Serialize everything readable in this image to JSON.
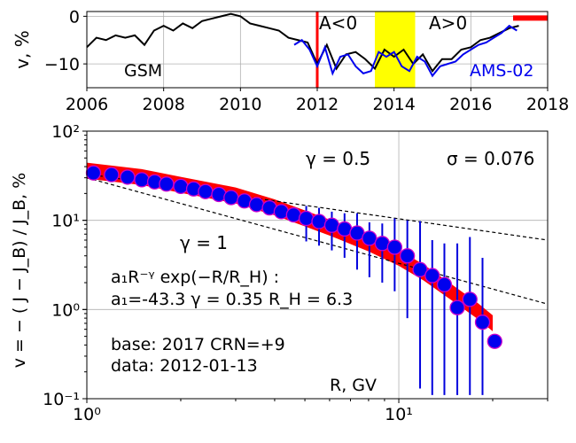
{
  "chart_data": [
    {
      "type": "line",
      "ylabel": "v, %",
      "xlim": [
        2006,
        2018
      ],
      "ylim": [
        -15,
        1
      ],
      "x_ticks": [
        "2006",
        "2008",
        "2010",
        "2012",
        "2014",
        "2016",
        "2018"
      ],
      "y_ticks": [
        "0",
        "−10"
      ],
      "grid": true,
      "annotations": {
        "left_phase": "A<0",
        "right_phase": "A>0",
        "series_black": "GSM",
        "series_blue": "AMS-02"
      },
      "reversal_start": 2012.0,
      "reversal_band": [
        2013.5,
        2014.55
      ],
      "marker_bar": [
        2017.1,
        2018.0
      ],
      "marker_bar_y": 0.0,
      "colors": {
        "gsm": "#000000",
        "ams": "#0000ee",
        "reversal_line": "#ff0000",
        "band": "#ffff00",
        "bar": "#ff0000"
      },
      "series": [
        {
          "name": "GSM",
          "x": [
            2006.0,
            2006.25,
            2006.5,
            2006.75,
            2007.0,
            2007.25,
            2007.5,
            2007.75,
            2008.0,
            2008.25,
            2008.5,
            2008.75,
            2009.0,
            2009.25,
            2009.5,
            2009.75,
            2010.0,
            2010.25,
            2010.5,
            2010.75,
            2011.0,
            2011.25,
            2011.5,
            2011.75,
            2012.0,
            2012.25,
            2012.5,
            2012.75,
            2013.0,
            2013.25,
            2013.5,
            2013.75,
            2014.0,
            2014.25,
            2014.5,
            2014.75,
            2015.0,
            2015.25,
            2015.5,
            2015.75,
            2016.0,
            2016.25,
            2016.5,
            2016.75,
            2017.0,
            2017.25
          ],
          "y": [
            -6.5,
            -4.5,
            -5.0,
            -4.0,
            -4.5,
            -4.0,
            -6.0,
            -3.0,
            -2.0,
            -3.0,
            -1.5,
            -2.5,
            -1.0,
            -0.5,
            0.0,
            0.5,
            0.0,
            -1.5,
            -2.0,
            -2.5,
            -3.0,
            -4.5,
            -5.0,
            -5.5,
            -10.0,
            -6.0,
            -11.0,
            -8.0,
            -7.5,
            -9.0,
            -11.0,
            -7.0,
            -8.5,
            -7.0,
            -10.0,
            -8.0,
            -11.5,
            -9.0,
            -9.0,
            -7.0,
            -6.5,
            -5.0,
            -4.5,
            -3.5,
            -2.5,
            -2.0
          ]
        },
        {
          "name": "AMS-02",
          "x": [
            2011.4,
            2011.6,
            2011.8,
            2012.0,
            2012.2,
            2012.4,
            2012.6,
            2012.8,
            2013.0,
            2013.2,
            2013.4,
            2013.6,
            2013.8,
            2014.0,
            2014.2,
            2014.4,
            2014.6,
            2014.8,
            2015.0,
            2015.2,
            2015.4,
            2015.6,
            2015.8,
            2016.0,
            2016.2,
            2016.4,
            2016.6,
            2016.8,
            2017.0,
            2017.2
          ],
          "y": [
            -6.0,
            -5.0,
            -7.0,
            -10.5,
            -6.5,
            -12.0,
            -8.5,
            -8.0,
            -10.5,
            -12.0,
            -11.5,
            -7.5,
            -8.5,
            -7.5,
            -10.5,
            -11.5,
            -8.5,
            -9.5,
            -12.5,
            -10.5,
            -10.0,
            -9.5,
            -8.0,
            -7.0,
            -6.0,
            -5.5,
            -4.5,
            -3.5,
            -2.0,
            -3.0
          ]
        }
      ]
    },
    {
      "type": "scatter",
      "xlabel": "R, GV",
      "ylabel": "v = − ( J − J_B) / J_B, %",
      "x_scale": "log",
      "y_scale": "log",
      "xlim": [
        1.0,
        30.0
      ],
      "ylim": [
        0.1,
        100.0
      ],
      "grid": true,
      "annotations": {
        "gamma_top": "γ = 0.5",
        "sigma": "σ = 0.076",
        "gamma_mid": "γ = 1",
        "formula": "a₁R⁻ᵞ exp(−R/R_H) :",
        "params": "a₁=-43.3  γ = 0.35  R_H =  6.3",
        "base": "base: 2017   CRN=+9",
        "data": "data: 2012-01-13"
      },
      "reference_lines": [
        {
          "name": "γ = 0.5",
          "x": [
            1.0,
            30.0
          ],
          "y": [
            33.0,
            6.0
          ]
        },
        {
          "name": "γ = 1",
          "x": [
            1.0,
            30.0
          ],
          "y": [
            30.0,
            1.15
          ]
        }
      ],
      "fit_band": {
        "x": [
          1.0,
          1.5,
          2.0,
          3.0,
          4.0,
          5.0,
          6.0,
          8.0,
          10.0,
          12.0,
          15.0,
          18.0,
          20.0
        ],
        "y": [
          36.0,
          30.5,
          25.0,
          19.0,
          14.0,
          10.5,
          8.3,
          5.5,
          3.8,
          2.6,
          1.5,
          0.95,
          0.7
        ]
      },
      "points": {
        "x": [
          1.05,
          1.2,
          1.35,
          1.5,
          1.65,
          1.8,
          2.0,
          2.2,
          2.4,
          2.65,
          2.9,
          3.2,
          3.5,
          3.85,
          4.2,
          4.6,
          5.05,
          5.55,
          6.1,
          6.7,
          7.35,
          8.05,
          8.85,
          9.7,
          10.65,
          11.7,
          12.8,
          14.0,
          15.4,
          16.9,
          18.55,
          20.3
        ],
        "y": [
          34.0,
          32.5,
          30.5,
          28.5,
          27.0,
          25.5,
          24.0,
          22.5,
          21.0,
          19.5,
          18.0,
          16.5,
          15.0,
          13.8,
          12.5,
          11.5,
          10.5,
          9.7,
          8.8,
          8.0,
          7.2,
          6.3,
          5.5,
          5.0,
          4.0,
          2.8,
          2.4,
          1.9,
          1.05,
          1.3,
          0.72,
          0.44
        ],
        "err_low": [
          0,
          0,
          0,
          0,
          0,
          0,
          0,
          0,
          0,
          0,
          0,
          0,
          0,
          0,
          0,
          0,
          5.8,
          5.2,
          4.6,
          3.8,
          2.8,
          2.3,
          2.0,
          1.6,
          0.8,
          0.13,
          0.11,
          0.11,
          0.11,
          0.11,
          0.11,
          0
        ],
        "err_high": [
          0,
          0,
          0,
          0,
          0,
          0,
          0,
          0,
          0,
          0,
          0,
          0,
          0,
          0,
          0,
          0,
          14.5,
          13.8,
          12.5,
          12.0,
          12.0,
          9.5,
          9.2,
          10.5,
          10.0,
          9.8,
          6.0,
          5.5,
          5.5,
          6.5,
          3.8,
          0
        ],
        "colors": {
          "marker_fill": "#0000ee",
          "marker_edge": "#cc00cc",
          "errorbar": "#0000dd",
          "fit": "#ff0000",
          "ref": "#000000"
        }
      },
      "x_ticks": [
        "10⁰",
        "10¹"
      ],
      "y_ticks": [
        "10⁻¹",
        "10⁰",
        "10¹",
        "10²"
      ]
    }
  ]
}
